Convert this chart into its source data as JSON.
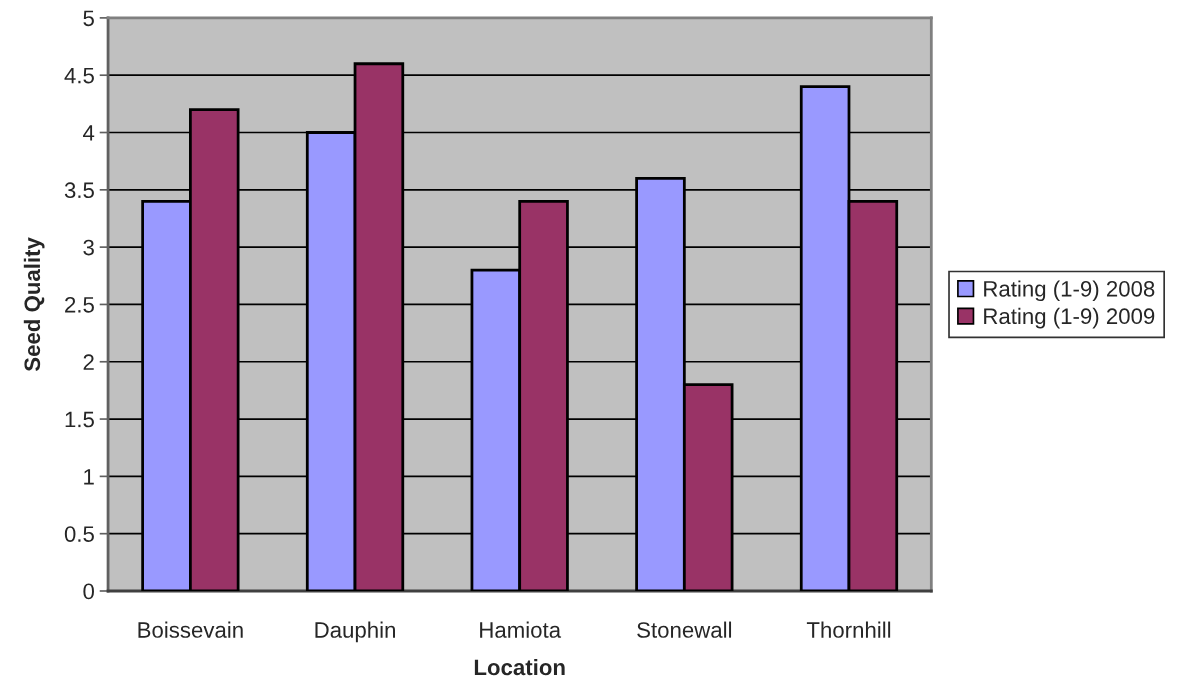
{
  "chart_data": {
    "type": "bar",
    "xlabel": "Location",
    "ylabel": "Seed Quality",
    "categories": [
      "Boissevain",
      "Dauphin",
      "Hamiota",
      "Stonewall",
      "Thornhill"
    ],
    "series": [
      {
        "name": "Rating (1-9) 2008",
        "color": "#9999ff",
        "values": [
          3.4,
          4.0,
          2.8,
          3.6,
          4.4
        ]
      },
      {
        "name": "Rating (1-9) 2009",
        "color": "#993366",
        "values": [
          4.2,
          4.6,
          3.4,
          1.8,
          3.4
        ]
      }
    ],
    "ylim": [
      0,
      5
    ],
    "yticks": [
      0,
      0.5,
      1,
      1.5,
      2,
      2.5,
      3,
      3.5,
      4,
      4.5,
      5
    ],
    "grid": "y",
    "legend": "right"
  }
}
